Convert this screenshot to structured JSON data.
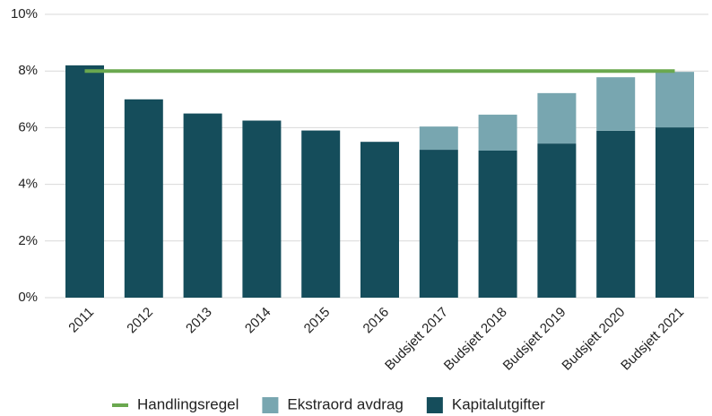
{
  "chart_data": {
    "type": "bar",
    "stacked": true,
    "categories": [
      "2011",
      "2012",
      "2013",
      "2014",
      "2015",
      "2016",
      "Budsjett 2017",
      "Budsjett 2018",
      "Budsjett 2019",
      "Budsjett 2020",
      "Budsjett 2021"
    ],
    "series": [
      {
        "name": "Handlingsregel",
        "type": "line",
        "color": "#6aa84f",
        "values": [
          8,
          8,
          8,
          8,
          8,
          8,
          8,
          8,
          8,
          8,
          8
        ]
      },
      {
        "name": "Ekstraord avdrag",
        "type": "bar",
        "color": "#78a6b0",
        "values": [
          null,
          null,
          null,
          null,
          null,
          null,
          0.82,
          1.27,
          1.78,
          1.89,
          1.96
        ]
      },
      {
        "name": "Kapitalutgifter",
        "type": "bar",
        "color": "#154d5b",
        "values": [
          8.2,
          7.0,
          6.5,
          6.25,
          5.9,
          5.5,
          5.22,
          5.19,
          5.44,
          5.89,
          6.01
        ]
      }
    ],
    "ylim": [
      0,
      10
    ],
    "yticks": [
      {
        "value": 0,
        "label": "0%"
      },
      {
        "value": 2,
        "label": "2%"
      },
      {
        "value": 4,
        "label": "4%"
      },
      {
        "value": 6,
        "label": "6%"
      },
      {
        "value": 8,
        "label": "8%"
      },
      {
        "value": 10,
        "label": "10%"
      }
    ],
    "grid": true,
    "legend": "bottom"
  }
}
